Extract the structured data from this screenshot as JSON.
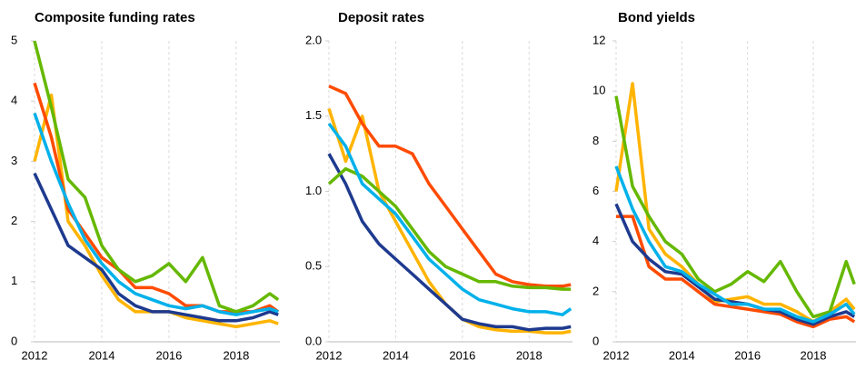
{
  "chart_data": [
    {
      "type": "line",
      "title": "Composite funding rates",
      "x": [
        2012,
        2012.5,
        2013,
        2013.5,
        2014,
        2014.5,
        2015,
        2015.5,
        2016,
        2016.5,
        2017,
        2017.5,
        2018,
        2018.5,
        2019,
        2019.25
      ],
      "xlim": [
        2012,
        2019.3
      ],
      "xticks": [
        2012,
        2014,
        2016,
        2018
      ],
      "ylim": [
        0,
        5
      ],
      "yticks": [
        0,
        1,
        2,
        3,
        4,
        5
      ],
      "grid": true,
      "series": [
        {
          "color": "#ffb400",
          "values": [
            3.0,
            4.1,
            2.0,
            1.6,
            1.1,
            0.7,
            0.5,
            0.5,
            0.5,
            0.4,
            0.35,
            0.3,
            0.25,
            0.3,
            0.35,
            0.3
          ]
        },
        {
          "color": "#ff4b00",
          "values": [
            4.3,
            3.4,
            2.2,
            1.8,
            1.4,
            1.2,
            0.9,
            0.9,
            0.8,
            0.6,
            0.6,
            0.5,
            0.5,
            0.5,
            0.6,
            0.5
          ]
        },
        {
          "color": "#1e3a8f",
          "values": [
            2.8,
            2.2,
            1.6,
            1.4,
            1.2,
            0.8,
            0.6,
            0.5,
            0.5,
            0.45,
            0.4,
            0.35,
            0.35,
            0.4,
            0.5,
            0.45
          ]
        },
        {
          "color": "#65b800",
          "values": [
            5.0,
            3.9,
            2.7,
            2.4,
            1.6,
            1.2,
            1.0,
            1.1,
            1.3,
            1.0,
            1.4,
            0.6,
            0.5,
            0.6,
            0.8,
            0.7
          ]
        },
        {
          "color": "#00b1ea",
          "values": [
            3.8,
            3.0,
            2.3,
            1.7,
            1.3,
            1.0,
            0.8,
            0.7,
            0.6,
            0.55,
            0.6,
            0.5,
            0.45,
            0.5,
            0.55,
            0.5
          ]
        }
      ]
    },
    {
      "type": "line",
      "title": "Deposit rates",
      "x": [
        2012,
        2012.5,
        2013,
        2013.5,
        2014,
        2014.5,
        2015,
        2015.5,
        2016,
        2016.5,
        2017,
        2017.5,
        2018,
        2018.5,
        2019,
        2019.25
      ],
      "xlim": [
        2012,
        2019.3
      ],
      "xticks": [
        2012,
        2014,
        2016,
        2018
      ],
      "ylim": [
        0,
        2
      ],
      "yticks": [
        {
          "value": 0,
          "label": "0.0"
        },
        0.5,
        {
          "value": 1,
          "label": "1.0"
        },
        1.5,
        {
          "value": 2,
          "label": "2.0"
        }
      ],
      "grid": true,
      "series": [
        {
          "color": "#ffb400",
          "values": [
            1.55,
            1.2,
            1.5,
            1.0,
            0.8,
            0.6,
            0.4,
            0.25,
            0.15,
            0.1,
            0.08,
            0.07,
            0.07,
            0.06,
            0.06,
            0.07
          ]
        },
        {
          "color": "#ff4b00",
          "values": [
            1.7,
            1.65,
            1.45,
            1.3,
            1.3,
            1.25,
            1.05,
            0.9,
            0.75,
            0.6,
            0.45,
            0.4,
            0.38,
            0.37,
            0.37,
            0.38
          ]
        },
        {
          "color": "#1e3a8f",
          "values": [
            1.25,
            1.05,
            0.8,
            0.65,
            0.55,
            0.45,
            0.35,
            0.25,
            0.15,
            0.12,
            0.1,
            0.1,
            0.08,
            0.09,
            0.09,
            0.1
          ]
        },
        {
          "color": "#65b800",
          "values": [
            1.05,
            1.15,
            1.1,
            1.0,
            0.9,
            0.75,
            0.6,
            0.5,
            0.45,
            0.4,
            0.4,
            0.37,
            0.36,
            0.36,
            0.35,
            0.35
          ]
        },
        {
          "color": "#00b1ea",
          "values": [
            1.45,
            1.3,
            1.05,
            0.95,
            0.85,
            0.7,
            0.55,
            0.45,
            0.35,
            0.28,
            0.25,
            0.22,
            0.2,
            0.2,
            0.18,
            0.22
          ]
        }
      ]
    },
    {
      "type": "line",
      "title": "Bond yields",
      "x": [
        2012,
        2012.5,
        2013,
        2013.5,
        2014,
        2014.5,
        2015,
        2015.5,
        2016,
        2016.5,
        2017,
        2017.5,
        2018,
        2018.5,
        2019,
        2019.25
      ],
      "xlim": [
        2012,
        2019.3
      ],
      "xticks": [
        2012,
        2014,
        2016,
        2018
      ],
      "ylim": [
        0,
        12
      ],
      "yticks": [
        0,
        2,
        4,
        6,
        8,
        10,
        12
      ],
      "grid": true,
      "series": [
        {
          "color": "#ffb400",
          "values": [
            6.0,
            10.3,
            4.5,
            3.5,
            3.0,
            2.3,
            1.6,
            1.7,
            1.8,
            1.5,
            1.5,
            1.2,
            0.8,
            1.2,
            1.7,
            1.3
          ]
        },
        {
          "color": "#ff4b00",
          "values": [
            5.0,
            5.0,
            3.0,
            2.5,
            2.5,
            2.0,
            1.5,
            1.4,
            1.3,
            1.2,
            1.1,
            0.8,
            0.6,
            0.9,
            1.0,
            0.8
          ]
        },
        {
          "color": "#1e3a8f",
          "values": [
            5.5,
            4.0,
            3.3,
            2.8,
            2.7,
            2.2,
            1.7,
            1.6,
            1.5,
            1.3,
            1.2,
            0.9,
            0.7,
            1.0,
            1.2,
            1.0
          ]
        },
        {
          "color": "#65b800",
          "values": [
            9.8,
            6.2,
            5.0,
            4.0,
            3.5,
            2.5,
            2.0,
            2.3,
            2.8,
            2.4,
            3.2,
            2.0,
            1.0,
            1.2,
            3.2,
            2.3
          ]
        },
        {
          "color": "#00b1ea",
          "values": [
            7.0,
            5.3,
            4.0,
            3.0,
            2.8,
            2.3,
            1.9,
            1.5,
            1.5,
            1.3,
            1.3,
            1.0,
            0.8,
            1.1,
            1.5,
            1.1
          ]
        }
      ]
    }
  ]
}
